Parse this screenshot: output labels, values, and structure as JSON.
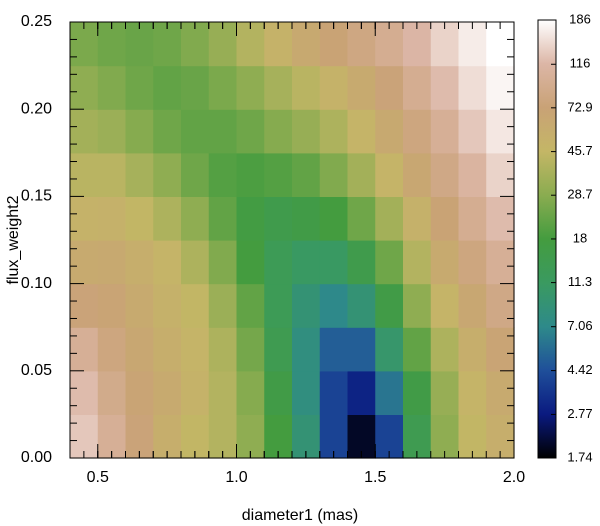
{
  "chart_data": {
    "type": "heatmap",
    "xlabel": "diameter1 (mas)",
    "ylabel": "flux_weight2",
    "x": [
      0.45,
      0.55,
      0.65,
      0.75,
      0.85,
      0.95,
      1.05,
      1.15,
      1.25,
      1.35,
      1.45,
      1.55,
      1.65,
      1.75,
      1.85,
      1.95
    ],
    "y": [
      0.0125,
      0.0375,
      0.0625,
      0.0875,
      0.1125,
      0.1375,
      0.1625,
      0.1875,
      0.2125,
      0.2375
    ],
    "z": [
      [
        130,
        100,
        75,
        55,
        45,
        40,
        30,
        18,
        9,
        4,
        2,
        4,
        14,
        30,
        45,
        55
      ],
      [
        120,
        90,
        70,
        60,
        50,
        40,
        28,
        16,
        8,
        4,
        3,
        6,
        16,
        32,
        48,
        60
      ],
      [
        100,
        80,
        65,
        55,
        48,
        38,
        25,
        14,
        8,
        5,
        5,
        10,
        22,
        38,
        55,
        70
      ],
      [
        75,
        70,
        60,
        52,
        45,
        33,
        22,
        13,
        9,
        7,
        9,
        16,
        30,
        48,
        65,
        85
      ],
      [
        60,
        62,
        55,
        48,
        38,
        27,
        18,
        13,
        11,
        11,
        15,
        24,
        40,
        60,
        80,
        100
      ],
      [
        50,
        52,
        45,
        38,
        30,
        22,
        17,
        15,
        16,
        18,
        24,
        35,
        52,
        72,
        95,
        120
      ],
      [
        42,
        42,
        36,
        30,
        24,
        20,
        19,
        20,
        22,
        27,
        35,
        48,
        65,
        85,
        110,
        140
      ],
      [
        35,
        33,
        28,
        24,
        22,
        22,
        24,
        28,
        32,
        38,
        48,
        62,
        80,
        100,
        130,
        160
      ],
      [
        30,
        27,
        24,
        22,
        23,
        26,
        30,
        36,
        42,
        50,
        60,
        75,
        95,
        120,
        150,
        175
      ],
      [
        26,
        24,
        23,
        24,
        27,
        32,
        40,
        50,
        62,
        72,
        82,
        95,
        115,
        140,
        165,
        186
      ]
    ],
    "xlim": [
      0.4,
      2.0
    ],
    "xticks": [
      0.5,
      {
        "value": 1,
        "label": "1.0"
      },
      1.5,
      {
        "value": 2,
        "label": "2.0"
      }
    ],
    "ylim": [
      0,
      0.25
    ],
    "yticks": [
      {
        "value": 0,
        "label": "0.00"
      },
      {
        "value": 0.05,
        "label": "0.05"
      },
      {
        "value": 0.1,
        "label": "0.10"
      },
      {
        "value": 0.15,
        "label": "0.15"
      },
      {
        "value": 0.2,
        "label": "0.20"
      },
      {
        "value": 0.25,
        "label": "0.25"
      }
    ],
    "clim": [
      1.74,
      186
    ],
    "color_scale": "log",
    "cticks": [
      186,
      116,
      72.9,
      45.7,
      28.7,
      18,
      11.3,
      7.06,
      4.42,
      2.77,
      1.74
    ],
    "colormap": [
      "#000000",
      "#0a1a80",
      "#1f4f9a",
      "#2e8a8a",
      "#3a9a60",
      "#449c3f",
      "#8aac50",
      "#c4b666",
      "#c9a276",
      "#dcb6a6",
      "#ffffff"
    ]
  }
}
